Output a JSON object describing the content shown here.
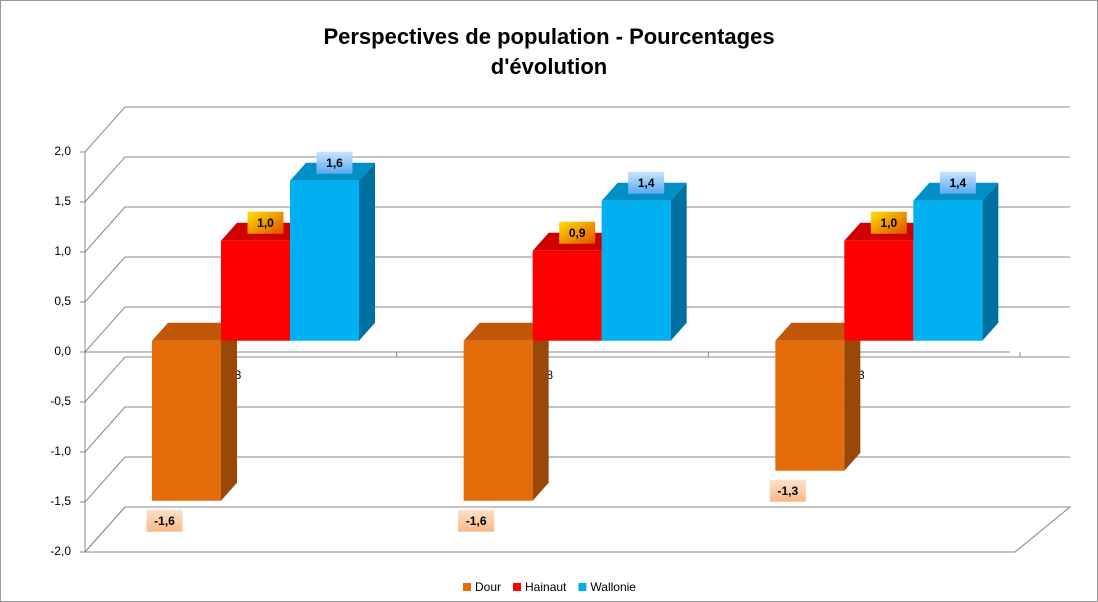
{
  "chart_data": {
    "type": "bar3d",
    "title": "Perspectives de population - Pourcentages d'évolution",
    "categories": [
      "2023",
      "2028",
      "2033"
    ],
    "series": [
      {
        "name": "Dour",
        "color": "#E46C0A",
        "values": [
          -1.6,
          -1.6,
          -1.3
        ],
        "value_labels": [
          "-1,6",
          "-1,6",
          "-1,3"
        ]
      },
      {
        "name": "Hainaut",
        "color": "#FF0000",
        "values": [
          1.0,
          0.9,
          1.0
        ],
        "value_labels": [
          "1,0",
          "0,9",
          "1,0"
        ]
      },
      {
        "name": "Wallonie",
        "color": "#00B0F0",
        "values": [
          1.6,
          1.4,
          1.4
        ],
        "value_labels": [
          "1,6",
          "1,4",
          "1,4"
        ]
      }
    ],
    "ylim": [
      -2,
      2
    ],
    "yticks": [
      {
        "value": -2,
        "label": "-2,0"
      },
      {
        "value": -1.5,
        "label": "-1,5"
      },
      {
        "value": -1,
        "label": "-1,0"
      },
      {
        "value": -0.5,
        "label": "-0,5"
      },
      {
        "value": 0,
        "label": "0,0"
      },
      {
        "value": 0.5,
        "label": "0,5"
      },
      {
        "value": 1,
        "label": "1,0"
      },
      {
        "value": 1.5,
        "label": "1,5"
      },
      {
        "value": 2,
        "label": "2,0"
      }
    ],
    "grid": true,
    "legend": "bottom"
  }
}
